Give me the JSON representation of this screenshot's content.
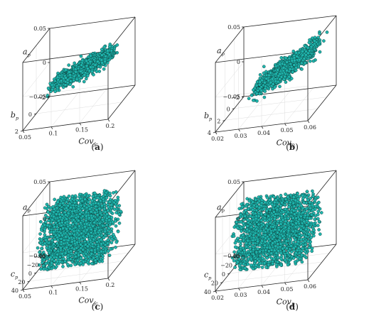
{
  "chart_data": [
    {
      "type": "scatter",
      "panel_label": "(a)",
      "marker_color": "#1fb5ad",
      "marker_edge": "#0b3d3a",
      "axes": {
        "x": {
          "label": "Cov",
          "sub": "fc",
          "ticks": [
            "0.05",
            "0.1",
            "0.15",
            "0.2"
          ],
          "range": [
            0.05,
            0.2
          ]
        },
        "y": {
          "label": "b",
          "sub": "p",
          "ticks": [
            "−2",
            "0",
            "2"
          ],
          "range": [
            -2,
            3
          ]
        },
        "z": {
          "label": "a",
          "sub": "p",
          "ticks": [
            "−0.05",
            "0",
            "0.05"
          ],
          "range": [
            -0.05,
            0.05
          ]
        }
      },
      "cloud": {
        "shape": "ellipsoid",
        "x_center": 0.13,
        "x_spread": 0.05,
        "y_center": 0.3,
        "y_spread": 1.6,
        "z_center": 0.005,
        "z_spread": 0.015
      }
    },
    {
      "type": "scatter",
      "panel_label": "(b)",
      "marker_color": "#1fb5ad",
      "marker_edge": "#0b3d3a",
      "axes": {
        "x": {
          "label": "Cov",
          "sub": "R",
          "ticks": [
            "0.02",
            "0.03",
            "0.04",
            "0.05",
            "0.06"
          ],
          "range": [
            0.02,
            0.06
          ]
        },
        "y": {
          "label": "b",
          "sub": "p",
          "ticks": [
            "−2",
            "0",
            "2",
            "4"
          ],
          "range": [
            -2,
            4
          ]
        },
        "z": {
          "label": "a",
          "sub": "p",
          "ticks": [
            "−0.05",
            "0",
            "0.05"
          ],
          "range": [
            -0.05,
            0.05
          ]
        }
      },
      "cloud": {
        "shape": "ellipsoid",
        "x_center": 0.045,
        "x_spread": 0.012,
        "y_center": 1.2,
        "y_spread": 2.0,
        "z_center": 0.008,
        "z_spread": 0.022
      }
    },
    {
      "type": "scatter",
      "panel_label": "(c)",
      "marker_color": "#1fb5ad",
      "marker_edge": "#0b3d3a",
      "axes": {
        "x": {
          "label": "Cov",
          "sub": "fc",
          "ticks": [
            "0.05",
            "0.1",
            "0.15",
            "0.2"
          ],
          "range": [
            0.05,
            0.2
          ]
        },
        "y": {
          "label": "c",
          "sub": "p",
          "ticks": [
            "−40",
            "−20",
            "0",
            "20",
            "40"
          ],
          "range": [
            -40,
            40
          ]
        },
        "z": {
          "label": "a",
          "sub": "p",
          "ticks": [
            "−0.05",
            "0",
            "0.05"
          ],
          "range": [
            -0.05,
            0.05
          ]
        }
      },
      "cloud": {
        "shape": "cylinder",
        "x_range": [
          0.07,
          0.18
        ],
        "y_center": 0,
        "y_spread": 36,
        "z_center": 0,
        "z_spread": 0.045
      }
    },
    {
      "type": "scatter",
      "panel_label": "(d)",
      "marker_color": "#1fb5ad",
      "marker_edge": "#0b3d3a",
      "axes": {
        "x": {
          "label": "Cov",
          "sub": "R",
          "ticks": [
            "0.02",
            "0.03",
            "0.04",
            "0.05",
            "0.06"
          ],
          "range": [
            0.02,
            0.06
          ]
        },
        "y": {
          "label": "c",
          "sub": "p",
          "ticks": [
            "−40",
            "−20",
            "0",
            "20",
            "40"
          ],
          "range": [
            -40,
            40
          ]
        },
        "z": {
          "label": "a",
          "sub": "p",
          "ticks": [
            "−0.05",
            "0",
            "0.05"
          ],
          "range": [
            -0.05,
            0.05
          ]
        }
      },
      "cloud": {
        "shape": "cylinder",
        "x_range": [
          0.025,
          0.055
        ],
        "y_center": 0,
        "y_spread": 36,
        "z_center": 0,
        "z_spread": 0.045
      }
    }
  ]
}
